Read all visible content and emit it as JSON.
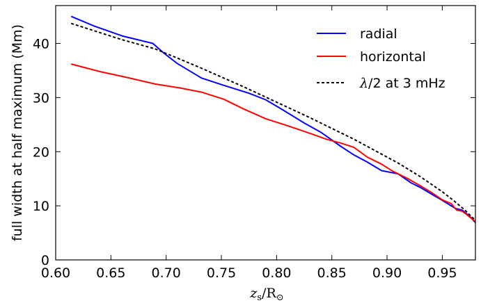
{
  "chart_data": {
    "type": "line",
    "title": "",
    "xlabel": {
      "base": "z",
      "sub": "s",
      "slash": "/",
      "den": "R",
      "den_sub": "⊙"
    },
    "ylabel": "full width at half maximum (Mm)",
    "xlim": [
      0.6,
      0.98
    ],
    "ylim": [
      0,
      47
    ],
    "xticks": [
      "0.60",
      "0.65",
      "0.70",
      "0.75",
      "0.80",
      "0.85",
      "0.90",
      "0.95"
    ],
    "yticks": [
      "0",
      "10",
      "20",
      "30",
      "40"
    ],
    "legend_position": "top-right",
    "series": [
      {
        "name": "radial",
        "color": "#0000ff",
        "style": "solid",
        "x": [
          0.614,
          0.635,
          0.66,
          0.688,
          0.698,
          0.71,
          0.732,
          0.75,
          0.775,
          0.79,
          0.805,
          0.825,
          0.84,
          0.858,
          0.87,
          0.882,
          0.895,
          0.91,
          0.922,
          0.93,
          0.94,
          0.95,
          0.962,
          0.968,
          0.975,
          0.98
        ],
        "y": [
          45.0,
          43.2,
          41.4,
          40.0,
          38.2,
          36.3,
          33.6,
          32.4,
          30.8,
          29.6,
          27.8,
          25.3,
          23.6,
          21.0,
          19.4,
          18.1,
          16.5,
          15.9,
          14.2,
          13.4,
          12.2,
          11.0,
          9.5,
          9.2,
          8.0,
          6.9
        ]
      },
      {
        "name": "horizontal",
        "color": "#ff0000",
        "style": "solid",
        "x": [
          0.614,
          0.64,
          0.665,
          0.69,
          0.712,
          0.732,
          0.752,
          0.77,
          0.79,
          0.81,
          0.83,
          0.845,
          0.858,
          0.87,
          0.882,
          0.895,
          0.905,
          0.918,
          0.93,
          0.94,
          0.95,
          0.958,
          0.963,
          0.968,
          0.972,
          0.976,
          0.98
        ],
        "y": [
          36.2,
          34.8,
          33.7,
          32.5,
          31.8,
          31.0,
          29.7,
          27.9,
          26.1,
          24.8,
          23.4,
          22.3,
          21.6,
          20.8,
          19.0,
          17.7,
          16.4,
          15.1,
          13.7,
          12.5,
          11.1,
          10.4,
          9.2,
          9.0,
          8.4,
          7.7,
          7.1
        ]
      },
      {
        "name": "λ/2 at 3 mHz",
        "name_parts": {
          "lambda": "λ",
          "rest": "/2 at 3 mHz"
        },
        "color": "#000000",
        "style": "dashed",
        "x": [
          0.614,
          0.64,
          0.66,
          0.69,
          0.71,
          0.73,
          0.75,
          0.77,
          0.79,
          0.81,
          0.83,
          0.85,
          0.87,
          0.89,
          0.91,
          0.93,
          0.95,
          0.96,
          0.97,
          0.98
        ],
        "y": [
          43.7,
          42.0,
          40.7,
          39.0,
          37.3,
          35.6,
          33.8,
          32.0,
          30.1,
          28.2,
          26.3,
          24.3,
          22.3,
          20.1,
          17.9,
          15.4,
          12.6,
          11.0,
          9.3,
          7.3
        ]
      }
    ]
  }
}
